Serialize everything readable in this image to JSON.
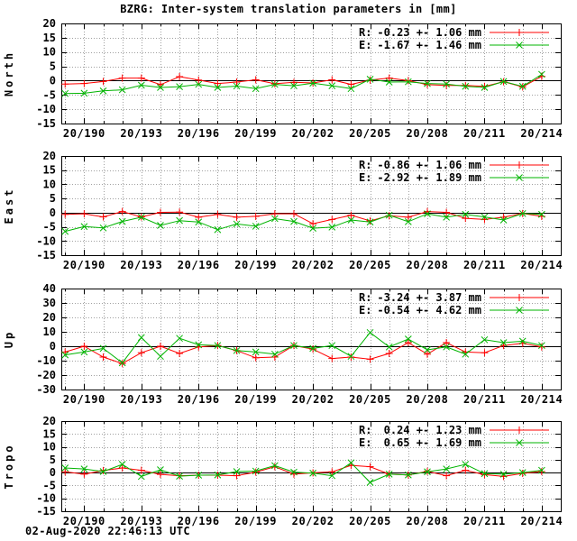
{
  "title": "BZRG: Inter-system translation parameters in [mm]",
  "timestamp": "02-Aug-2020 22:46:13 UTC",
  "colors": {
    "r_series": "#ff0000",
    "e_series": "#00b400",
    "grid": "#a0a0a0",
    "axis": "#000000",
    "background": "#ffffff"
  },
  "x_axis": {
    "domain": [
      188.8,
      215.0
    ],
    "start_day": 189,
    "end_day": 214,
    "tick_days": [
      190,
      193,
      196,
      199,
      202,
      205,
      208,
      211,
      214
    ],
    "tick_labels": [
      "20/190",
      "20/193",
      "20/196",
      "20/199",
      "20/202",
      "20/205",
      "20/208",
      "20/211",
      "20/214"
    ]
  },
  "chart_data": [
    {
      "type": "line",
      "ylabel": "North",
      "ylim": [
        -15,
        20
      ],
      "yticks": [
        -15,
        -10,
        -5,
        0,
        5,
        10,
        15,
        20
      ],
      "grid": true,
      "legend_position": "top-right",
      "series": [
        {
          "name": "R",
          "legend_label": "R:",
          "legend_value": "-0.23 +- 1.06 mm",
          "mean": -0.23,
          "std": 1.06,
          "unit": "mm",
          "color": "#ff0000",
          "marker": "plus",
          "values": [
            -1.2,
            -1.0,
            -0.3,
            0.9,
            0.9,
            -1.4,
            1.4,
            0.2,
            -1.0,
            -0.5,
            0.3,
            -1.1,
            -0.6,
            -0.8,
            0.3,
            -1.3,
            0.2,
            0.9,
            0.0,
            -1.4,
            -1.7,
            -1.7,
            -2.0,
            -0.4,
            -2.2,
            1.5
          ]
        },
        {
          "name": "E",
          "legend_label": "E:",
          "legend_value": "-1.67 +- 1.46 mm",
          "mean": -1.67,
          "std": 1.46,
          "unit": "mm",
          "color": "#00b400",
          "marker": "x",
          "values": [
            -4.5,
            -4.4,
            -3.6,
            -3.2,
            -1.6,
            -2.4,
            -2.1,
            -1.3,
            -2.4,
            -1.9,
            -2.8,
            -1.3,
            -1.8,
            -0.9,
            -1.8,
            -2.8,
            0.5,
            -0.5,
            -0.4,
            -1.0,
            -1.2,
            -2.0,
            -2.4,
            -0.3,
            -2.0,
            2.2
          ]
        }
      ]
    },
    {
      "type": "line",
      "ylabel": "East",
      "ylim": [
        -15,
        20
      ],
      "yticks": [
        -15,
        -10,
        -5,
        0,
        5,
        10,
        15,
        20
      ],
      "grid": true,
      "legend_position": "top-right",
      "series": [
        {
          "name": "R",
          "legend_label": "R:",
          "legend_value": "-0.86 +- 1.06 mm",
          "mean": -0.86,
          "std": 1.06,
          "unit": "mm",
          "color": "#ff0000",
          "marker": "plus",
          "values": [
            -0.6,
            -0.4,
            -1.5,
            0.4,
            -1.5,
            0.1,
            0.2,
            -1.6,
            -0.6,
            -1.6,
            -1.3,
            -0.4,
            -0.4,
            -3.9,
            -2.4,
            -0.9,
            -2.9,
            -1.1,
            -1.6,
            0.4,
            0.1,
            -2.0,
            -2.4,
            -1.6,
            -0.3,
            -1.3
          ]
        },
        {
          "name": "E",
          "legend_label": "E:",
          "legend_value": "-2.92 +- 1.89 mm",
          "mean": -2.92,
          "std": 1.89,
          "unit": "mm",
          "color": "#00b400",
          "marker": "x",
          "values": [
            -6.6,
            -4.9,
            -5.4,
            -3.1,
            -1.6,
            -4.5,
            -2.8,
            -3.3,
            -6.0,
            -4.0,
            -4.8,
            -2.1,
            -3.1,
            -5.5,
            -5.1,
            -2.6,
            -3.3,
            -0.9,
            -3.2,
            -0.4,
            -1.6,
            -0.6,
            -1.5,
            -2.6,
            -0.3,
            -0.6
          ]
        }
      ]
    },
    {
      "type": "line",
      "ylabel": "Up",
      "ylim": [
        -30,
        40
      ],
      "yticks": [
        -30,
        -20,
        -10,
        0,
        10,
        20,
        30,
        40
      ],
      "grid": true,
      "legend_position": "top-right",
      "series": [
        {
          "name": "R",
          "legend_label": "R:",
          "legend_value": "-3.24 +- 3.87 mm",
          "mean": -3.24,
          "std": 3.87,
          "unit": "mm",
          "color": "#ff0000",
          "marker": "plus",
          "values": [
            -4.0,
            0.0,
            -7.5,
            -12.0,
            -4.5,
            0.0,
            -5.0,
            -0.5,
            0.5,
            -3.0,
            -8.0,
            -7.5,
            0.5,
            -2.0,
            -8.5,
            -7.5,
            -9.0,
            -5.0,
            2.5,
            -5.5,
            2.5,
            -4.0,
            -4.5,
            0.5,
            2.0,
            -0.5
          ]
        },
        {
          "name": "E",
          "legend_label": "E:",
          "legend_value": "-0.54 +- 4.62 mm",
          "mean": -0.54,
          "std": 4.62,
          "unit": "mm",
          "color": "#00b400",
          "marker": "x",
          "values": [
            -6.0,
            -4.0,
            -1.5,
            -11.5,
            6.0,
            -7.0,
            5.5,
            1.0,
            0.5,
            -3.0,
            -4.0,
            -5.5,
            0.5,
            -1.5,
            0.5,
            -7.0,
            9.5,
            -0.5,
            5.0,
            -2.5,
            -0.5,
            -5.5,
            4.5,
            2.5,
            3.5,
            0.5
          ]
        }
      ]
    },
    {
      "type": "line",
      "ylabel": "Tropo",
      "ylim": [
        -15,
        20
      ],
      "yticks": [
        -15,
        -10,
        -5,
        0,
        5,
        10,
        15,
        20
      ],
      "grid": true,
      "legend_position": "top-right",
      "series": [
        {
          "name": "R",
          "legend_label": "R:",
          "legend_value": "0.24 +- 1.23 mm",
          "mean": 0.24,
          "std": 1.23,
          "unit": "mm",
          "color": "#ff0000",
          "marker": "plus",
          "values": [
            0.3,
            -0.6,
            0.8,
            1.8,
            0.9,
            -0.7,
            -1.2,
            -1.0,
            -1.0,
            -1.2,
            0.2,
            2.3,
            -0.6,
            -0.1,
            0.3,
            2.8,
            2.3,
            -0.6,
            -0.9,
            0.5,
            -1.2,
            0.9,
            -0.8,
            -1.5,
            -0.3,
            0.4
          ]
        },
        {
          "name": "E",
          "legend_label": "E:",
          "legend_value": "0.65 +- 1.69 mm",
          "mean": 0.65,
          "std": 1.69,
          "unit": "mm",
          "color": "#00b400",
          "marker": "x",
          "values": [
            1.8,
            1.4,
            0.4,
            3.2,
            -1.5,
            1.1,
            -1.4,
            -1.0,
            -0.9,
            0.4,
            0.6,
            2.7,
            0.2,
            -0.2,
            -1.2,
            3.8,
            -3.8,
            -0.6,
            -0.9,
            0.3,
            1.4,
            3.2,
            -0.4,
            -0.6,
            0.0,
            0.9
          ]
        }
      ]
    }
  ]
}
